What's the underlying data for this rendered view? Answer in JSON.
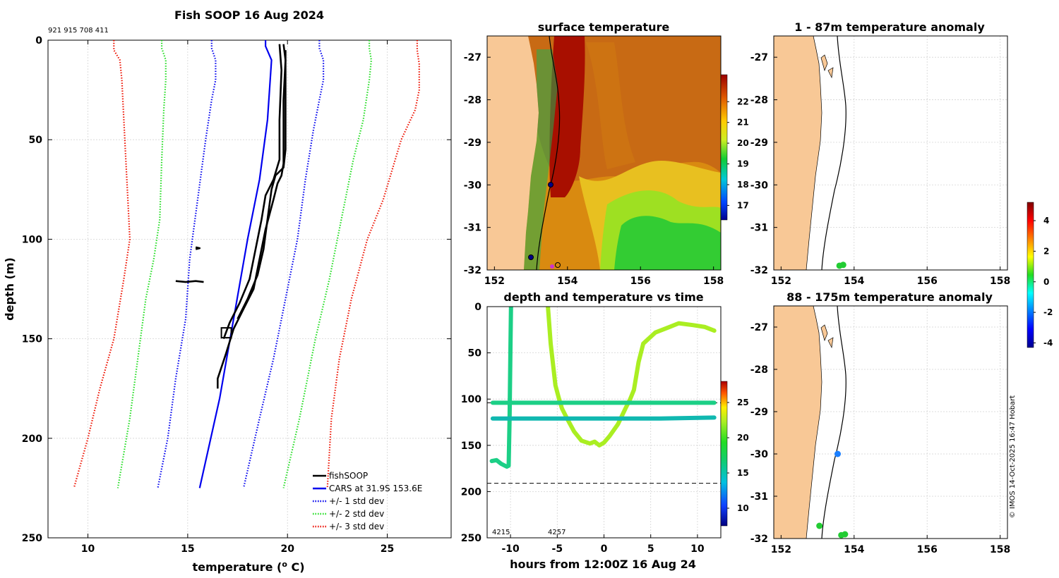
{
  "figure": {
    "title": "Fish SOOP 16 Aug 2024",
    "ids": "921 915 708 411",
    "copyright": "© IMOS 14-Oct-2025 16:47 Hobart",
    "colors": {
      "land": "#f8c896",
      "black": "#000000",
      "cars": "#0000ee",
      "std1": "#0000ee",
      "std2": "#22dd22",
      "std3": "#ee1100"
    }
  },
  "chart_data": [
    {
      "id": "profile",
      "type": "line",
      "title": "Fish SOOP 16 Aug 2024",
      "xlabel": "temperature (o C)",
      "ylabel": "depth (m)",
      "xlim": [
        8,
        28.2
      ],
      "ylim": [
        250,
        0
      ],
      "xticks": [
        10,
        15,
        20,
        25
      ],
      "yticks": [
        0,
        50,
        100,
        150,
        200,
        250
      ],
      "legend": [
        "fishSOOP",
        "CARS at 31.9S 153.6E",
        "+/- 1 std dev",
        "+/- 2 std dev",
        "+/- 3 std dev"
      ],
      "series": [
        {
          "name": "CARS at 31.9S 153.6E",
          "style": "solid",
          "color": "#0000ee",
          "points": [
            [
              18.9,
              0
            ],
            [
              18.9,
              3
            ],
            [
              19.2,
              10
            ],
            [
              19.0,
              40
            ],
            [
              18.6,
              70
            ],
            [
              18.0,
              100
            ],
            [
              17.3,
              140
            ],
            [
              16.6,
              180
            ],
            [
              15.6,
              225
            ]
          ]
        },
        {
          "name": "+1 std dev",
          "style": "dotted",
          "color": "#0000ee",
          "points": [
            [
              21.6,
              0
            ],
            [
              21.6,
              4
            ],
            [
              21.8,
              10
            ],
            [
              21.8,
              20
            ],
            [
              21.6,
              30
            ],
            [
              21.3,
              45
            ],
            [
              20.9,
              70
            ],
            [
              20.5,
              100
            ],
            [
              19.9,
              130
            ],
            [
              19.3,
              160
            ],
            [
              18.6,
              190
            ],
            [
              17.8,
              225
            ]
          ]
        },
        {
          "name": "-1 std dev",
          "style": "dotted",
          "color": "#0000ee",
          "points": [
            [
              16.2,
              0
            ],
            [
              16.2,
              4
            ],
            [
              16.4,
              10
            ],
            [
              16.4,
              20
            ],
            [
              16.2,
              30
            ],
            [
              15.9,
              50
            ],
            [
              15.5,
              80
            ],
            [
              15.1,
              110
            ],
            [
              14.9,
              140
            ],
            [
              14.4,
              170
            ],
            [
              14.0,
              200
            ],
            [
              13.5,
              225
            ]
          ]
        },
        {
          "name": "+2 std dev",
          "style": "dotted",
          "color": "#22dd22",
          "points": [
            [
              24.1,
              0
            ],
            [
              24.1,
              4
            ],
            [
              24.2,
              10
            ],
            [
              24.1,
              20
            ],
            [
              23.8,
              40
            ],
            [
              23.3,
              60
            ],
            [
              22.7,
              90
            ],
            [
              22.1,
              120
            ],
            [
              21.4,
              150
            ],
            [
              20.6,
              190
            ],
            [
              19.8,
              225
            ]
          ]
        },
        {
          "name": "-2 std dev",
          "style": "dotted",
          "color": "#22dd22",
          "points": [
            [
              13.7,
              0
            ],
            [
              13.7,
              4
            ],
            [
              13.9,
              10
            ],
            [
              13.9,
              20
            ],
            [
              13.8,
              35
            ],
            [
              13.7,
              60
            ],
            [
              13.6,
              90
            ],
            [
              13.3,
              110
            ],
            [
              12.9,
              130
            ],
            [
              12.5,
              160
            ],
            [
              12.1,
              190
            ],
            [
              11.5,
              225
            ]
          ]
        },
        {
          "name": "+3 std dev",
          "style": "dotted",
          "color": "#ee1100",
          "points": [
            [
              26.5,
              0
            ],
            [
              26.5,
              5
            ],
            [
              26.6,
              12
            ],
            [
              26.6,
              25
            ],
            [
              26.4,
              35
            ],
            [
              25.7,
              50
            ],
            [
              24.8,
              80
            ],
            [
              24.0,
              100
            ],
            [
              23.2,
              130
            ],
            [
              22.6,
              160
            ],
            [
              22.2,
              190
            ],
            [
              22.0,
              225
            ]
          ]
        },
        {
          "name": "-3 std dev",
          "style": "dotted",
          "color": "#ee1100",
          "points": [
            [
              11.3,
              0
            ],
            [
              11.3,
              5
            ],
            [
              11.6,
              10
            ],
            [
              11.7,
              20
            ],
            [
              11.8,
              40
            ],
            [
              11.9,
              60
            ],
            [
              12.0,
              80
            ],
            [
              12.1,
              100
            ],
            [
              11.8,
              120
            ],
            [
              11.3,
              150
            ],
            [
              10.6,
              175
            ],
            [
              10.0,
              200
            ],
            [
              9.3,
              225
            ]
          ]
        },
        {
          "name": "fishSOOP",
          "style": "solid",
          "color": "#000000",
          "points": [
            [
              19.8,
              2
            ],
            [
              19.9,
              10
            ],
            [
              19.8,
              30
            ],
            [
              19.8,
              50
            ],
            [
              19.8,
              62
            ],
            [
              19.7,
              68
            ],
            [
              19.5,
              72
            ],
            [
              19.3,
              80
            ],
            [
              18.9,
              95
            ],
            [
              18.6,
              110
            ],
            [
              18.3,
              125
            ],
            [
              17.8,
              135
            ],
            [
              17.3,
              145
            ],
            [
              16.9,
              158
            ],
            [
              16.5,
              170
            ],
            [
              16.5,
              175
            ]
          ]
        },
        {
          "name": "fishSOOP",
          "style": "solid",
          "color": "#000000",
          "points": [
            [
              19.6,
              2
            ],
            [
              19.7,
              15
            ],
            [
              19.6,
              40
            ],
            [
              19.6,
              60
            ],
            [
              19.3,
              70
            ],
            [
              18.9,
              78
            ],
            [
              18.7,
              90
            ],
            [
              18.4,
              105
            ],
            [
              18.1,
              120
            ],
            [
              17.6,
              132
            ],
            [
              17.1,
              142
            ],
            [
              16.8,
              150
            ]
          ]
        },
        {
          "name": "fishSOOP",
          "style": "solid",
          "color": "#000000",
          "points": [
            [
              19.9,
              5
            ],
            [
              19.9,
              30
            ],
            [
              19.9,
              55
            ],
            [
              19.8,
              64
            ],
            [
              19.4,
              68
            ],
            [
              19.2,
              75
            ],
            [
              19.0,
              90
            ],
            [
              18.8,
              105
            ],
            [
              18.5,
              118
            ],
            [
              18.0,
              130
            ],
            [
              17.5,
              140
            ]
          ]
        },
        {
          "name": "fishSOOP",
          "style": "solid",
          "color": "#000000",
          "points": [
            [
              14.4,
              121
            ],
            [
              14.9,
              121.5
            ],
            [
              15.4,
              121
            ],
            [
              15.8,
              121.5
            ]
          ]
        },
        {
          "name": "fishSOOP",
          "style": "solid",
          "color": "#000000",
          "points": [
            [
              15.4,
              104
            ],
            [
              15.6,
              104.5
            ],
            [
              15.4,
              105
            ]
          ]
        }
      ]
    },
    {
      "id": "sst",
      "type": "heatmap",
      "title": "surface temperature",
      "xlim": [
        151.8,
        158.2
      ],
      "ylim": [
        -32,
        -26.5
      ],
      "xticks": [
        152,
        154,
        156,
        158
      ],
      "yticks": [
        -27,
        -28,
        -29,
        -30,
        -31,
        -32
      ],
      "colorbar": {
        "min": 16.3,
        "max": 23.3,
        "ticks": [
          17,
          18,
          19,
          20,
          21,
          22
        ]
      },
      "stations": [
        [
          153.6,
          -30.0
        ],
        [
          153.0,
          -31.7
        ],
        [
          153.7,
          -31.9
        ]
      ]
    },
    {
      "id": "timeseries",
      "type": "scatter",
      "title": "depth and temperature vs time",
      "xlabel": "hours from 12:00Z 16 Aug 24",
      "xlim": [
        -12.5,
        12.5
      ],
      "ylim": [
        250,
        0
      ],
      "xticks": [
        -10,
        -5,
        0,
        5,
        10
      ],
      "yticks": [
        0,
        50,
        100,
        150,
        200,
        250
      ],
      "annotations": [
        "4215",
        "4257"
      ],
      "dashed_depths": [
        104,
        191
      ],
      "colorbar": {
        "min": 7.5,
        "max": 28,
        "ticks": [
          10,
          15,
          20,
          25
        ]
      },
      "series": [
        {
          "name": "track 4215 a",
          "temp": 18.6,
          "points": [
            [
              -12.0,
              167
            ],
            [
              -11.5,
              166
            ],
            [
              -11.0,
              170
            ],
            [
              -10.4,
              173
            ],
            [
              -10.2,
              172
            ],
            [
              -10.1,
              120
            ],
            [
              -10.0,
              40
            ],
            [
              -9.95,
              0
            ]
          ]
        },
        {
          "name": "track 4257",
          "temp": 22.5,
          "points": [
            [
              -6.0,
              0
            ],
            [
              -5.7,
              40
            ],
            [
              -5.2,
              85
            ],
            [
              -4.8,
              100
            ],
            [
              -4.5,
              110
            ],
            [
              -4.0,
              120
            ],
            [
              -3.2,
              135
            ],
            [
              -2.4,
              145
            ],
            [
              -1.5,
              148
            ],
            [
              -1.0,
              146
            ],
            [
              -0.5,
              150
            ],
            [
              0,
              147
            ],
            [
              0.6,
              140
            ],
            [
              1.5,
              127
            ],
            [
              2.3,
              110
            ],
            [
              2.8,
              100
            ],
            [
              3.2,
              90
            ],
            [
              3.7,
              60
            ],
            [
              4.2,
              40
            ],
            [
              5.5,
              28
            ],
            [
              7.0,
              22
            ],
            [
              8.0,
              18
            ],
            [
              9.5,
              20
            ],
            [
              10.8,
              22
            ],
            [
              11.8,
              26
            ]
          ]
        },
        {
          "name": "track 104m",
          "temp": 16.5,
          "points": [
            [
              -11.9,
              104
            ],
            [
              -6,
              104
            ],
            [
              0,
              104
            ],
            [
              6,
              104
            ],
            [
              11.8,
              104
            ]
          ]
        },
        {
          "name": "track 121m",
          "temp": 16.0,
          "points": [
            [
              -11.9,
              121
            ],
            [
              -6,
              121
            ],
            [
              0,
              121
            ],
            [
              6,
              121
            ],
            [
              11.8,
              120
            ]
          ]
        }
      ]
    },
    {
      "id": "anom1",
      "type": "scatter",
      "title": "1 - 87m temperature anomaly",
      "xlim": [
        151.8,
        158.2
      ],
      "ylim": [
        -32,
        -26.5
      ],
      "xticks": [
        152,
        154,
        156,
        158
      ],
      "yticks": [
        -27,
        -28,
        -29,
        -30,
        -31,
        -32
      ],
      "points": [
        {
          "lon": 153.6,
          "lat": -31.9,
          "anomaly": 0.6
        },
        {
          "lon": 153.7,
          "lat": -31.88,
          "anomaly": 0.8
        }
      ],
      "colorbar": {
        "min": -4.3,
        "max": 5.2,
        "ticks": [
          -4,
          -2,
          0,
          2,
          4
        ]
      }
    },
    {
      "id": "anom2",
      "type": "scatter",
      "title": "88 - 175m temperature anomaly",
      "xlim": [
        151.8,
        158.2
      ],
      "ylim": [
        -32,
        -26.5
      ],
      "xticks": [
        152,
        154,
        156,
        158
      ],
      "yticks": [
        -27,
        -28,
        -29,
        -30,
        -31,
        -32
      ],
      "points": [
        {
          "lon": 153.05,
          "lat": -31.7,
          "anomaly": 0.4
        },
        {
          "lon": 153.55,
          "lat": -30.0,
          "anomaly": -2.3
        },
        {
          "lon": 153.65,
          "lat": -31.92,
          "anomaly": 0.5
        },
        {
          "lon": 153.75,
          "lat": -31.9,
          "anomaly": 0.7
        }
      ]
    }
  ]
}
